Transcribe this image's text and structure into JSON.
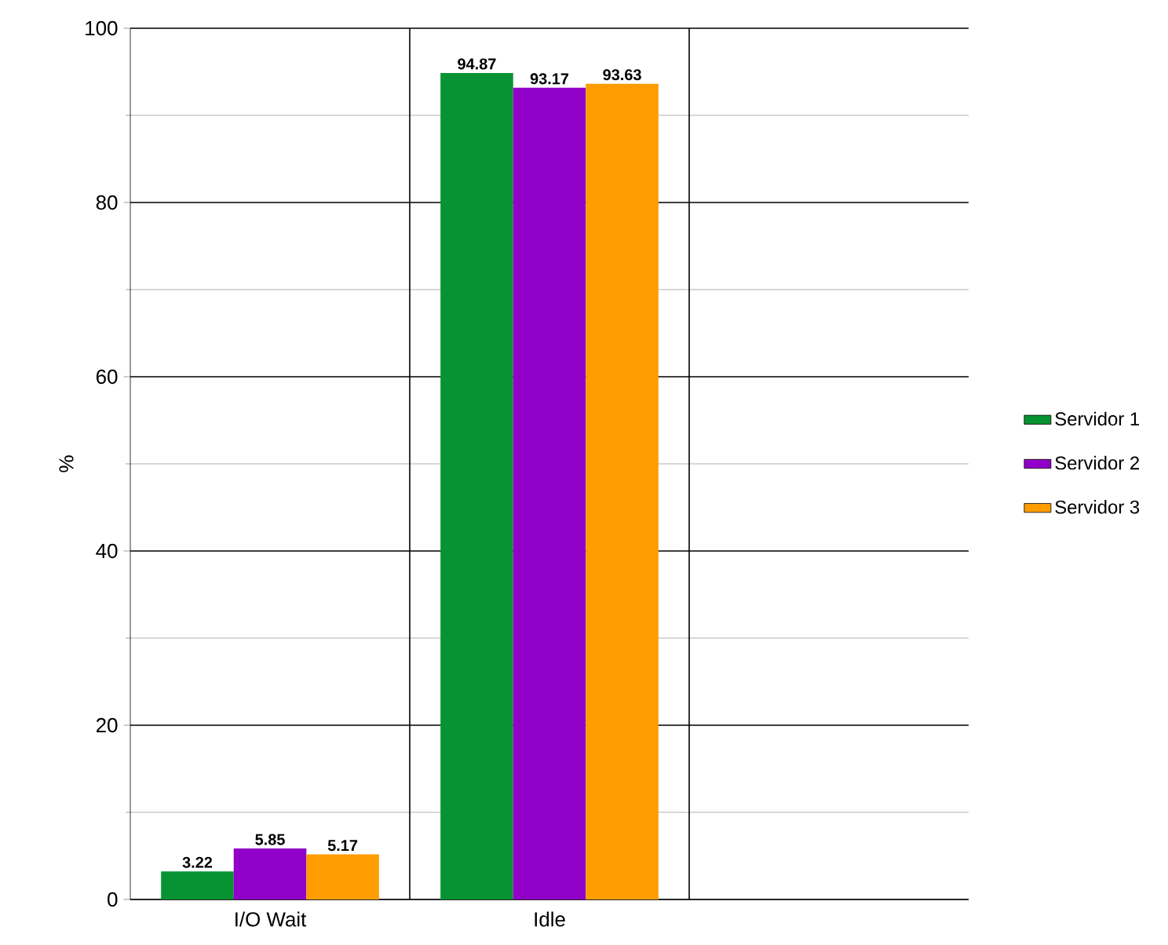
{
  "chart_data": {
    "type": "bar",
    "ylabel": "%",
    "categories": [
      "I/O Wait",
      "Idle",
      null
    ],
    "series": [
      {
        "name": "Servidor 1",
        "color": "#079332",
        "values": [
          3.22,
          94.87,
          null
        ]
      },
      {
        "name": "Servidor 2",
        "color": "#9000c8",
        "values": [
          5.85,
          93.17,
          null
        ]
      },
      {
        "name": "Servidor 3",
        "color": "#ff9c00",
        "values": [
          5.17,
          93.63,
          null
        ]
      }
    ],
    "ylim": [
      0,
      100
    ],
    "yticks": [
      0,
      20,
      40,
      60,
      80,
      100
    ],
    "grid": true,
    "legend": "right",
    "data_labels": true
  }
}
